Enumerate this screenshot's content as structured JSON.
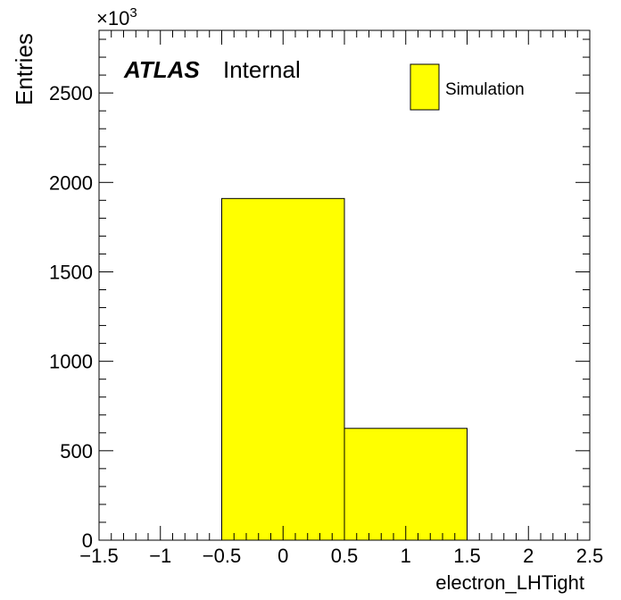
{
  "chart_data": {
    "type": "bar",
    "histogram": true,
    "bin_edges": [
      -0.5,
      0.5,
      1.5
    ],
    "values": [
      1910000,
      625000
    ],
    "fill_color": "#ffff00",
    "edge_color": "#000000",
    "xlabel": "electron_LHTight",
    "ylabel": "Entries",
    "xlim": [
      -1.5,
      2.5
    ],
    "ylim": [
      0,
      2850000
    ],
    "x_ticks": [
      -1.5,
      -1,
      -0.5,
      0,
      0.5,
      1,
      1.5,
      2,
      2.5
    ],
    "x_tick_labels": [
      "−1.5",
      "−1",
      "−0.5",
      "0",
      "0.5",
      "1",
      "1.5",
      "2",
      "2.5"
    ],
    "y_ticks": [
      0,
      500000,
      1000000,
      1500000,
      2000000,
      2500000
    ],
    "y_tick_labels": [
      "0",
      "500",
      "1000",
      "1500",
      "2000",
      "2500"
    ],
    "y_multiplier": "×10",
    "y_multiplier_exponent": "3",
    "grid": false,
    "legend": {
      "placement": "top-right",
      "entries": [
        "Simulation"
      ]
    },
    "atlas_label": {
      "bold": "ATLAS",
      "text": "Internal"
    }
  }
}
